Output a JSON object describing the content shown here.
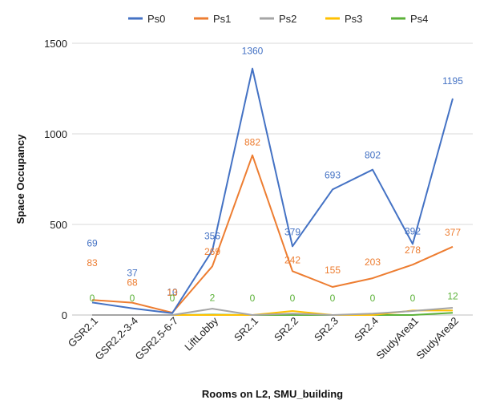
{
  "chart_data": {
    "type": "line",
    "title": "",
    "xlabel": "Rooms on L2, SMU_building",
    "ylabel": "Space Occupancy",
    "ylim": [
      0,
      1500
    ],
    "yticks": [
      0,
      500,
      1000,
      1500
    ],
    "grid": true,
    "legend_position": "top",
    "categories": [
      "GSR2.1",
      "GSR2.2-3-4",
      "GSR2.5-6-7",
      "LiftLobby",
      "SR2.1",
      "SR2.2",
      "SR2.3",
      "SR2.4",
      "StudyArea1",
      "StudyArea2"
    ],
    "series": [
      {
        "name": "Ps0",
        "color": "#4472C4",
        "values": [
          69,
          37,
          10,
          356,
          1360,
          379,
          693,
          802,
          392,
          1195
        ],
        "labels": [
          "69",
          "37",
          "10",
          "356",
          "1360",
          "379",
          "693",
          "802",
          "392",
          "1195"
        ]
      },
      {
        "name": "Ps1",
        "color": "#ED7D31",
        "values": [
          83,
          68,
          13,
          269,
          882,
          242,
          155,
          203,
          278,
          377
        ],
        "labels": [
          "83",
          "68",
          "13",
          "269",
          "882",
          "242",
          "155",
          "203",
          "278",
          "377"
        ]
      },
      {
        "name": "Ps2",
        "color": "#A5A5A5",
        "values": [
          0,
          0,
          0,
          35,
          0,
          8,
          0,
          8,
          22,
          40
        ],
        "labels": []
      },
      {
        "name": "Ps3",
        "color": "#FFC000",
        "values": [
          0,
          0,
          0,
          0,
          0,
          22,
          0,
          0,
          25,
          25
        ],
        "labels": []
      },
      {
        "name": "Ps4",
        "color": "#5BB138",
        "values": [
          0,
          0,
          0,
          2,
          0,
          0,
          0,
          0,
          0,
          12
        ],
        "labels": [
          "0",
          "0",
          "0",
          "2",
          "0",
          "0",
          "0",
          "0",
          "0",
          "12"
        ]
      }
    ]
  }
}
